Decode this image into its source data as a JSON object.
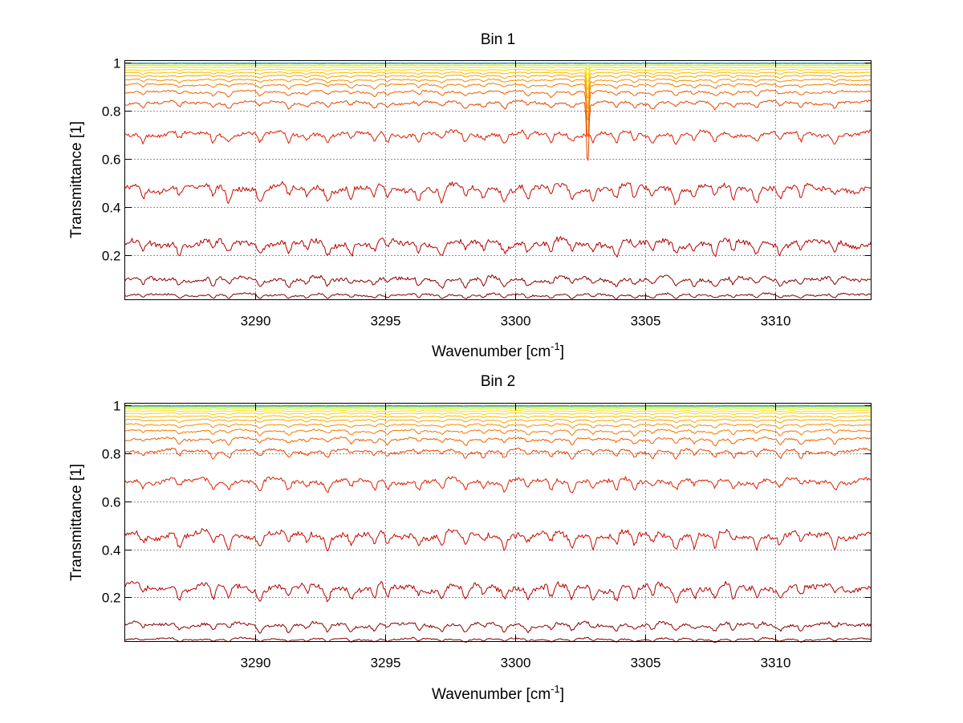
{
  "chart_data": [
    {
      "type": "line",
      "title": "Bin 1",
      "xlabel": "Wavenumber [cm",
      "xlabel_sup": "-1",
      "xlabel_end": "]",
      "ylabel": "Transmittance [1]",
      "xlim": [
        3285,
        3313.7
      ],
      "ylim": [
        0.015,
        1.01
      ],
      "xticks": [
        {
          "value": 3290,
          "label": "3290"
        },
        {
          "value": 3295,
          "label": "3295"
        },
        {
          "value": 3300,
          "label": "3300"
        },
        {
          "value": 3305,
          "label": "3305"
        },
        {
          "value": 3310,
          "label": "3310"
        }
      ],
      "yticks": [
        {
          "value": 0.2,
          "label": "0.2"
        },
        {
          "value": 0.4,
          "label": "0.4"
        },
        {
          "value": 0.6,
          "label": "0.6"
        },
        {
          "value": 0.8,
          "label": "0.8"
        },
        {
          "value": 1.0,
          "label": "1"
        }
      ],
      "grid": true,
      "absorption_lines": [
        3285.7,
        3287.1,
        3288.4,
        3289.0,
        3290.2,
        3291.3,
        3292.0,
        3292.8,
        3293.7,
        3294.6,
        3295.1,
        3296.3,
        3297.2,
        3298.1,
        3298.8,
        3299.6,
        3300.5,
        3301.4,
        3302.2,
        3303.0,
        3303.9,
        3304.6,
        3305.3,
        3306.2,
        3306.9,
        3307.7,
        3308.4,
        3309.3,
        3310.2,
        3311.0,
        3312.3
      ],
      "strong_line": 3302.8,
      "series": [
        {
          "level": 0.035,
          "color": "#800000"
        },
        {
          "level": 0.1,
          "color": "#8c0000"
        },
        {
          "level": 0.25,
          "color": "#b40000"
        },
        {
          "level": 0.48,
          "color": "#c80a00"
        },
        {
          "level": 0.705,
          "color": "#dc2000"
        },
        {
          "level": 0.835,
          "color": "#e84400"
        },
        {
          "level": 0.88,
          "color": "#f06000"
        },
        {
          "level": 0.91,
          "color": "#f27a00"
        },
        {
          "level": 0.93,
          "color": "#f59000"
        },
        {
          "level": 0.947,
          "color": "#f7a600"
        },
        {
          "level": 0.96,
          "color": "#f9bc00"
        },
        {
          "level": 0.972,
          "color": "#fbd200"
        },
        {
          "level": 0.982,
          "color": "#f0e000"
        },
        {
          "level": 0.99,
          "color": "#d8ea10"
        },
        {
          "level": 0.996,
          "color": "#a8e040"
        },
        {
          "level": 0.999,
          "color": "#60c880"
        },
        {
          "level": 1.0,
          "color": "#1e90c8"
        }
      ]
    },
    {
      "type": "line",
      "title": "Bin 2",
      "xlabel": "Wavenumber [cm",
      "xlabel_sup": "-1",
      "xlabel_end": "]",
      "ylabel": "Transmittance [1]",
      "xlim": [
        3285,
        3313.7
      ],
      "ylim": [
        0.015,
        1.01
      ],
      "xticks": [
        {
          "value": 3290,
          "label": "3290"
        },
        {
          "value": 3295,
          "label": "3295"
        },
        {
          "value": 3300,
          "label": "3300"
        },
        {
          "value": 3305,
          "label": "3305"
        },
        {
          "value": 3310,
          "label": "3310"
        }
      ],
      "yticks": [
        {
          "value": 0.2,
          "label": "0.2"
        },
        {
          "value": 0.4,
          "label": "0.4"
        },
        {
          "value": 0.6,
          "label": "0.6"
        },
        {
          "value": 0.8,
          "label": "0.8"
        },
        {
          "value": 1.0,
          "label": "1"
        }
      ],
      "grid": true,
      "absorption_lines": [
        3285.7,
        3287.1,
        3288.4,
        3289.0,
        3290.2,
        3291.3,
        3292.0,
        3292.8,
        3293.7,
        3294.6,
        3295.1,
        3296.3,
        3297.2,
        3298.1,
        3298.8,
        3299.6,
        3300.5,
        3301.4,
        3302.2,
        3303.0,
        3303.9,
        3304.6,
        3305.3,
        3306.2,
        3306.9,
        3307.7,
        3308.4,
        3309.3,
        3310.2,
        3311.0,
        3312.3
      ],
      "strong_line": null,
      "series": [
        {
          "level": 0.025,
          "color": "#800000"
        },
        {
          "level": 0.085,
          "color": "#8c0000"
        },
        {
          "level": 0.24,
          "color": "#b40000"
        },
        {
          "level": 0.46,
          "color": "#c80a00"
        },
        {
          "level": 0.685,
          "color": "#dc2000"
        },
        {
          "level": 0.81,
          "color": "#e84400"
        },
        {
          "level": 0.86,
          "color": "#f06000"
        },
        {
          "level": 0.895,
          "color": "#f27a00"
        },
        {
          "level": 0.92,
          "color": "#f59000"
        },
        {
          "level": 0.94,
          "color": "#f7a600"
        },
        {
          "level": 0.955,
          "color": "#f9bc00"
        },
        {
          "level": 0.968,
          "color": "#fbd200"
        },
        {
          "level": 0.978,
          "color": "#f0e000"
        },
        {
          "level": 0.987,
          "color": "#d8ea10"
        },
        {
          "level": 0.994,
          "color": "#a8e040"
        },
        {
          "level": 0.998,
          "color": "#60c880"
        },
        {
          "level": 1.0,
          "color": "#1e90c8"
        }
      ]
    }
  ]
}
